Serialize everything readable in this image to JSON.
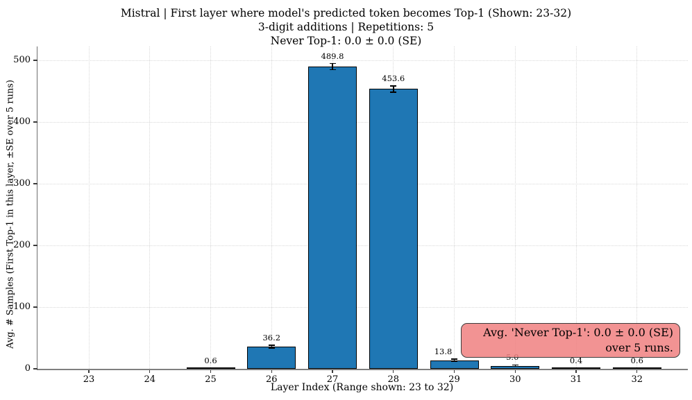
{
  "figure": {
    "title_lines": [
      "Mistral | First layer where model's predicted token becomes Top-1 (Shown: 23-32)",
      "3-digit additions | Repetitions: 5",
      "Never Top-1: 0.0 ± 0.0 (SE)"
    ]
  },
  "chart_data": {
    "type": "bar",
    "title": "Mistral | First layer where model's predicted token becomes Top-1 (Shown: 23-32)",
    "subtitle": "3-digit additions | Repetitions: 5",
    "subtitle2": "Never Top-1: 0.0 ± 0.0 (SE)",
    "xlabel": "Layer Index (Range shown: 23 to 32)",
    "ylabel": "Avg. # Samples (First Top-1 in this layer, ±SE over 5 runs)",
    "categories": [
      "23",
      "24",
      "25",
      "26",
      "27",
      "28",
      "29",
      "30",
      "31",
      "32"
    ],
    "values": [
      0.0,
      0.0,
      0.6,
      36.2,
      489.8,
      453.6,
      13.8,
      5.0,
      0.4,
      0.6
    ],
    "se_values": [
      0,
      0,
      0.4,
      2.2,
      5.0,
      5.0,
      2.0,
      1.2,
      0.4,
      0.4
    ],
    "bar_labels": [
      "",
      "",
      "0.6",
      "36.2",
      "489.8",
      "453.6",
      "13.8",
      "5.0",
      "0.4",
      "0.6"
    ],
    "label_dx": [
      0,
      0,
      0,
      0,
      0,
      0,
      -16,
      -4,
      0,
      0
    ],
    "yticks": [
      0,
      100,
      200,
      300,
      400,
      500
    ],
    "ylim": [
      0,
      522
    ],
    "grid": true,
    "legend_position": "none",
    "bar_color": "#1f77b4",
    "bar_edge_color": "#000000",
    "grid_color": "#d8d8d8",
    "error_color": "#000000"
  },
  "annotation": {
    "text_line1": "Avg. 'Never Top-1': 0.0 ± 0.0 (SE)",
    "text_line2": "over 5 runs.",
    "bg_color": "rgba(240,128,128,0.85)",
    "border_color": "#3c3c3c"
  }
}
